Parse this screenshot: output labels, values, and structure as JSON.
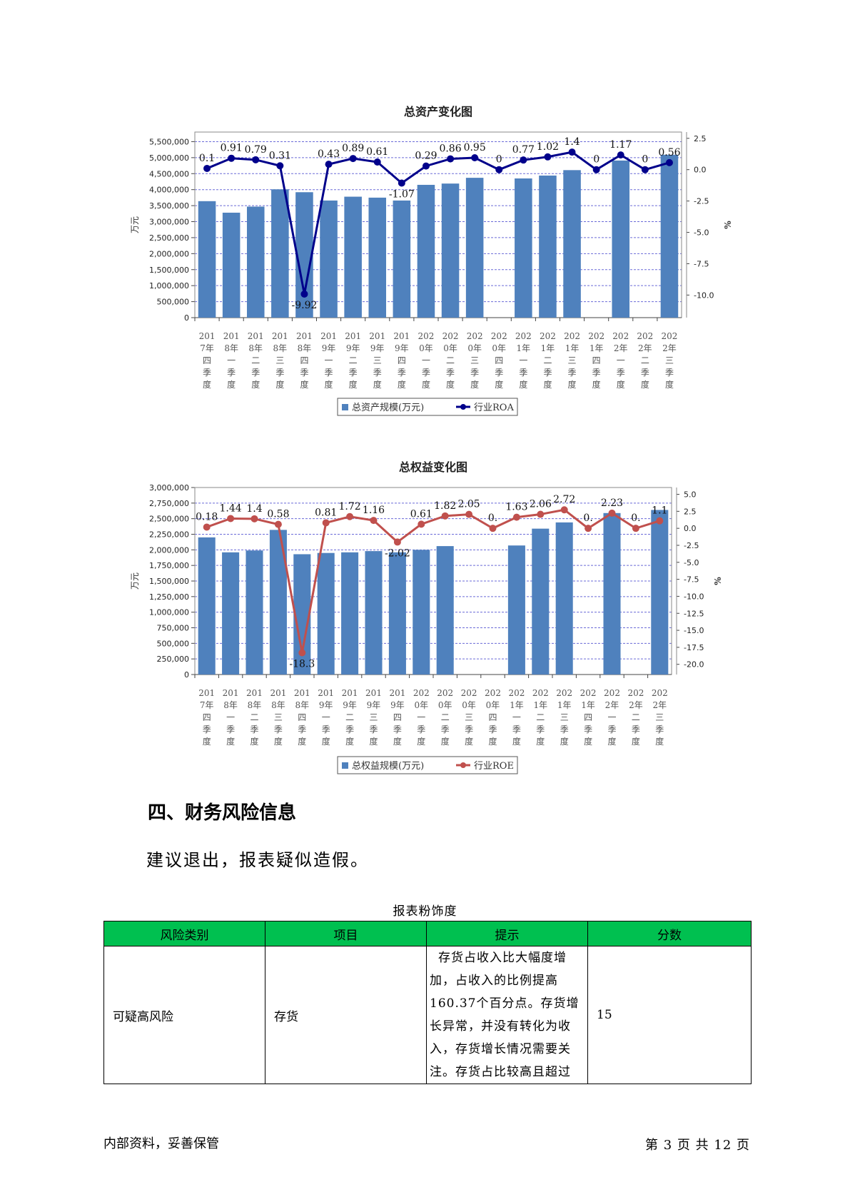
{
  "chart_data": [
    {
      "type": "bar",
      "title": "总资产变化图",
      "ylabel": "万元",
      "y2label": "%",
      "legend": {
        "placement": "bottom-center",
        "bar_label": "总资产规模(万元)",
        "line_label": "行业ROA"
      },
      "colors": {
        "bar": "#4f81bd",
        "line": "#00008b"
      },
      "categories": [
        "2017年四季度",
        "2018年一季度",
        "2018年二季度",
        "2018年三季度",
        "2018年四季度",
        "2019年一季度",
        "2019年二季度",
        "2019年三季度",
        "2019年四季度",
        "2020年一季度",
        "2020年二季度",
        "2020年三季度",
        "2020年四季度",
        "2021年一季度",
        "2021年二季度",
        "2021年三季度",
        "2021年四季度",
        "2022年一季度",
        "2022年二季度",
        "2022年三季度"
      ],
      "x_tick_lines": [
        [
          "201",
          "7年",
          "四",
          "季",
          "度"
        ],
        [
          "201",
          "8年",
          "一",
          "季",
          "度"
        ],
        [
          "201",
          "8年",
          "二",
          "季",
          "度"
        ],
        [
          "201",
          "8年",
          "三",
          "季",
          "度"
        ],
        [
          "201",
          "8年",
          "四",
          "季",
          "度"
        ],
        [
          "201",
          "9年",
          "一",
          "季",
          "度"
        ],
        [
          "201",
          "9年",
          "二",
          "季",
          "度"
        ],
        [
          "201",
          "9年",
          "三",
          "季",
          "度"
        ],
        [
          "201",
          "9年",
          "四",
          "季",
          "度"
        ],
        [
          "202",
          "0年",
          "一",
          "季",
          "度"
        ],
        [
          "202",
          "0年",
          "二",
          "季",
          "度"
        ],
        [
          "202",
          "0年",
          "三",
          "季",
          "度"
        ],
        [
          "202",
          "0年",
          "四",
          "季",
          "度"
        ],
        [
          "202",
          "1年",
          "一",
          "季",
          "度"
        ],
        [
          "202",
          "1年",
          "二",
          "季",
          "度"
        ],
        [
          "202",
          "1年",
          "三",
          "季",
          "度"
        ],
        [
          "202",
          "1年",
          "四",
          "季",
          "度"
        ],
        [
          "202",
          "2年",
          "一",
          "季",
          "度"
        ],
        [
          "202",
          "2年",
          "二",
          "季",
          "度"
        ],
        [
          "202",
          "2年",
          "三",
          "季",
          "度"
        ]
      ],
      "bar_values": [
        3640000,
        3280000,
        3470000,
        4010000,
        3920000,
        3660000,
        3780000,
        3750000,
        3660000,
        4150000,
        4190000,
        4370000,
        null,
        4350000,
        4440000,
        4610000,
        null,
        4910000,
        null,
        5090000
      ],
      "line_values": [
        0.1,
        0.91,
        0.79,
        0.31,
        -9.92,
        0.43,
        0.89,
        0.61,
        -1.07,
        0.29,
        0.86,
        0.95,
        0,
        0.77,
        1.02,
        1.4,
        0,
        1.17,
        0,
        0.56
      ],
      "line_labels": [
        "0.1",
        "0.91",
        "0.79",
        "0.31",
        "-9.92",
        "0.43",
        "0.89",
        "0.61",
        "-1.07",
        "0.29",
        "0.86",
        "0.95",
        "0",
        "0.77",
        "1.02",
        "1.4",
        "0",
        "1.17",
        "0",
        "0.56"
      ],
      "y_ticks": [
        "5,500,000",
        "5,000,000",
        "4,500,000",
        "4,000,000",
        "3,500,000",
        "3,000,000",
        "2,500,000",
        "2,000,000",
        "1,500,000",
        "1,000,000",
        "500,000",
        "0"
      ],
      "ylim": [
        0,
        5800000
      ],
      "y2_ticks": [
        "2.5",
        "0.0",
        "-2.5",
        "-5.0",
        "-7.5",
        "-10.0"
      ],
      "y2lim": [
        -11.8,
        3.0
      ],
      "grid": true
    },
    {
      "type": "bar",
      "title": "总权益变化图",
      "ylabel": "万元",
      "y2label": "%",
      "legend": {
        "placement": "bottom-center",
        "bar_label": "总权益规模(万元)",
        "line_label": "行业ROE"
      },
      "colors": {
        "bar": "#4f81bd",
        "line": "#c0504d"
      },
      "categories": [
        "2017年四季度",
        "2018年一季度",
        "2018年二季度",
        "2018年三季度",
        "2018年四季度",
        "2019年一季度",
        "2019年二季度",
        "2019年三季度",
        "2019年四季度",
        "2020年一季度",
        "2020年二季度",
        "2020年三季度",
        "2020年四季度",
        "2021年一季度",
        "2021年二季度",
        "2021年三季度",
        "2021年四季度",
        "2022年一季度",
        "2022年二季度",
        "2022年三季度"
      ],
      "x_tick_lines": [
        [
          "201",
          "7年",
          "四",
          "季",
          "度"
        ],
        [
          "201",
          "8年",
          "一",
          "季",
          "度"
        ],
        [
          "201",
          "8年",
          "二",
          "季",
          "度"
        ],
        [
          "201",
          "8年",
          "三",
          "季",
          "度"
        ],
        [
          "201",
          "8年",
          "四",
          "季",
          "度"
        ],
        [
          "201",
          "9年",
          "一",
          "季",
          "度"
        ],
        [
          "201",
          "9年",
          "二",
          "季",
          "度"
        ],
        [
          "201",
          "9年",
          "三",
          "季",
          "度"
        ],
        [
          "201",
          "9年",
          "四",
          "季",
          "度"
        ],
        [
          "202",
          "0年",
          "一",
          "季",
          "度"
        ],
        [
          "202",
          "0年",
          "二",
          "季",
          "度"
        ],
        [
          "202",
          "0年",
          "三",
          "季",
          "度"
        ],
        [
          "202",
          "0年",
          "四",
          "季",
          "度"
        ],
        [
          "202",
          "1年",
          "一",
          "季",
          "度"
        ],
        [
          "202",
          "1年",
          "二",
          "季",
          "度"
        ],
        [
          "202",
          "1年",
          "三",
          "季",
          "度"
        ],
        [
          "202",
          "1年",
          "四",
          "季",
          "度"
        ],
        [
          "202",
          "2年",
          "一",
          "季",
          "度"
        ],
        [
          "202",
          "2年",
          "二",
          "季",
          "度"
        ],
        [
          "202",
          "2年",
          "三",
          "季",
          "度"
        ]
      ],
      "bar_values": [
        2200000,
        1960000,
        1990000,
        2320000,
        1930000,
        1950000,
        1960000,
        1980000,
        1960000,
        2000000,
        2060000,
        null,
        null,
        2070000,
        2340000,
        2440000,
        null,
        2590000,
        null,
        2640000
      ],
      "line_values": [
        0.18,
        1.44,
        1.4,
        0.58,
        -18.3,
        0.81,
        1.72,
        1.16,
        -2.02,
        0.61,
        1.82,
        2.05,
        0,
        1.63,
        2.06,
        2.72,
        0,
        2.23,
        0,
        1.1
      ],
      "line_labels": [
        "0.18",
        "1.44",
        "1.4",
        "0.58",
        "-18.3",
        "0.81",
        "1.72",
        "1.16",
        "-2.02",
        "0.61",
        "1.82",
        "2.05",
        "0.",
        "1.63",
        "2.06",
        "2.72",
        "0.",
        "2.23",
        "0.",
        "1.1"
      ],
      "y_ticks": [
        "3,000,000",
        "2,750,000",
        "2,500,000",
        "2,250,000",
        "2,000,000",
        "1,750,000",
        "1,500,000",
        "1,250,000",
        "1,000,000",
        "750,000",
        "500,000",
        "250,000",
        "0"
      ],
      "ylim": [
        0,
        3000000
      ],
      "y2_ticks": [
        "5.0",
        "2.5",
        "0.0",
        "-2.5",
        "-5.0",
        "-7.5",
        "-10.0",
        "-12.5",
        "-15.0",
        "-17.5",
        "-20.0"
      ],
      "y2lim": [
        -21.5,
        6.0
      ],
      "grid": true
    }
  ],
  "section": {
    "title": "四、财务风险信息",
    "paragraph": "建议退出，报表疑似造假。"
  },
  "table": {
    "caption": "报表粉饰度",
    "header_color": "#00c050",
    "headers": [
      "风险类别",
      "项目",
      "提示",
      "分数"
    ],
    "rows": [
      {
        "category": "可疑高风险",
        "item": "存货",
        "tip": "存货占收入比大幅度增加，占收入的比例提高160.37个百分点。存货增长异常，并没有转化为收入，存货增长情况需要关注。存货占比较高且超过",
        "score": "15"
      }
    ]
  },
  "footer": {
    "left": "内部资料，妥善保管",
    "right": "第 3 页   共 12 页"
  }
}
